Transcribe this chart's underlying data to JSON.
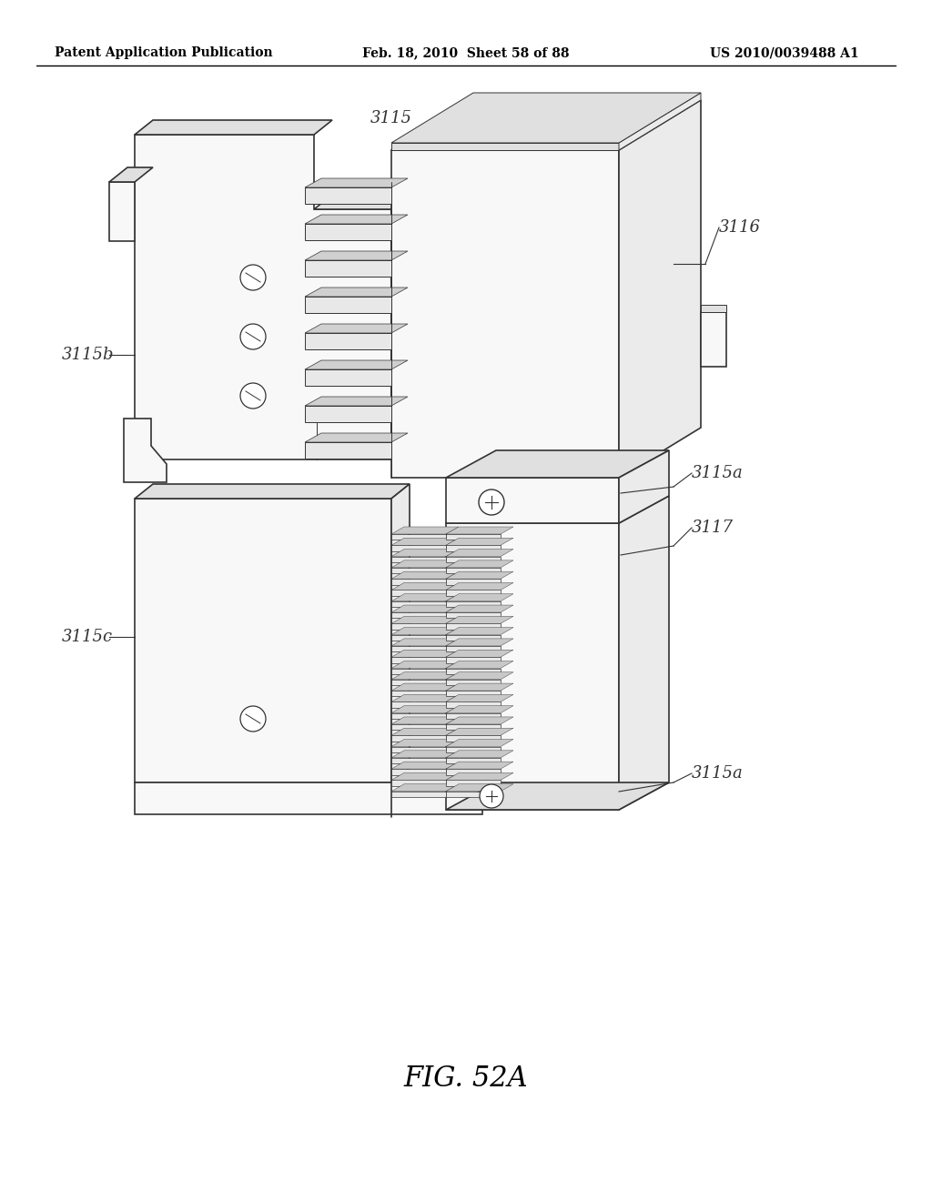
{
  "title_left": "Patent Application Publication",
  "title_mid": "Feb. 18, 2010  Sheet 58 of 88",
  "title_right": "US 2010/0039488 A1",
  "fig_label": "FIG. 52A",
  "background_color": "#ffffff",
  "line_color": "#333333",
  "label_color": "#333333",
  "lw_main": 1.2,
  "lw_thin": 0.7
}
